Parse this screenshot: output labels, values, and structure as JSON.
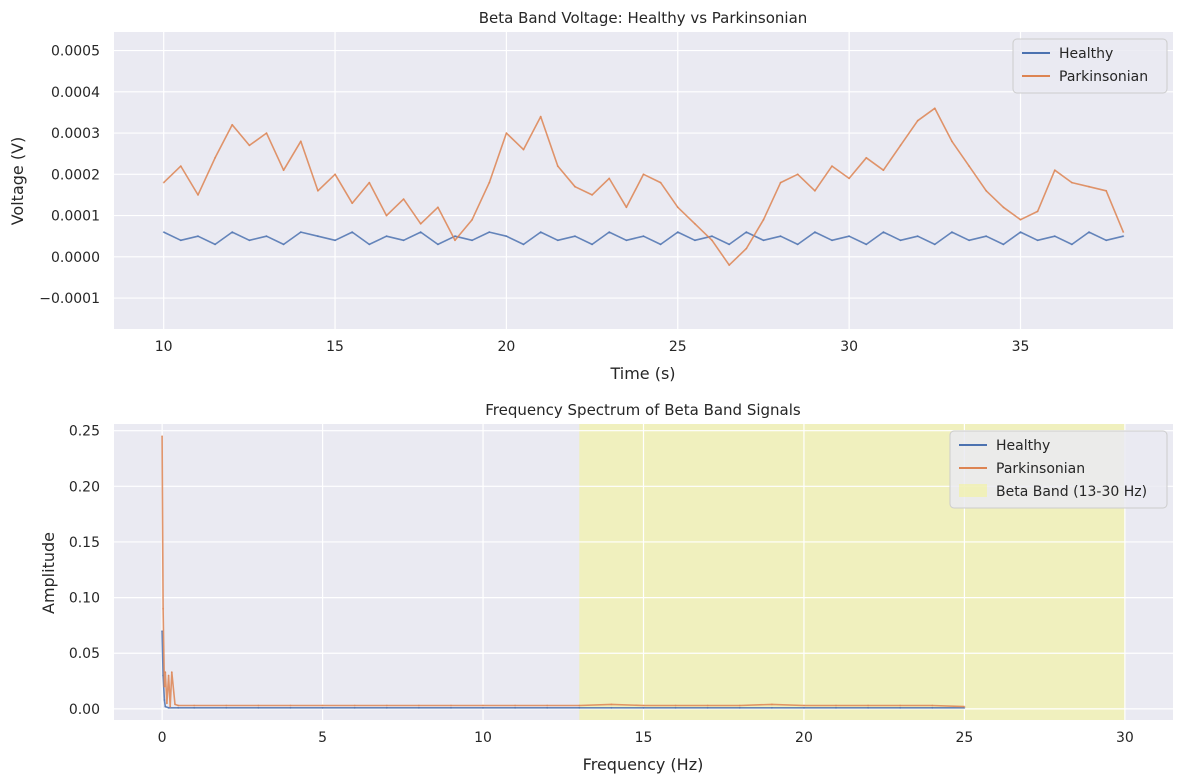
{
  "chart_data": [
    {
      "type": "line",
      "title": "Beta Band Voltage: Healthy vs Parkinsonian",
      "xlabel": "Time (s)",
      "ylabel": "Voltage (V)",
      "xlim": [
        8.55,
        39.45
      ],
      "ylim": [
        -0.000175,
        0.000545
      ],
      "xticks": [
        10,
        15,
        20,
        25,
        30,
        35
      ],
      "xtick_labels": [
        "10",
        "15",
        "20",
        "25",
        "30",
        "35"
      ],
      "yticks": [
        -0.0001,
        0.0,
        0.0001,
        0.0002,
        0.0003,
        0.0004,
        0.0005
      ],
      "ytick_labels": [
        "−0.0001",
        "0.0000",
        "0.0001",
        "0.0002",
        "0.0003",
        "0.0004",
        "0.0005"
      ],
      "grid": true,
      "legend_position": "top-right",
      "series": [
        {
          "name": "Healthy",
          "color": "#4c72b0",
          "x": [
            10,
            10.5,
            11,
            11.5,
            12,
            12.5,
            13,
            13.5,
            14,
            14.5,
            15,
            15.5,
            16,
            16.5,
            17,
            17.5,
            18,
            18.5,
            19,
            19.5,
            20,
            20.5,
            21,
            21.5,
            22,
            22.5,
            23,
            23.5,
            24,
            24.5,
            25,
            25.5,
            26,
            26.5,
            27,
            27.5,
            28,
            28.5,
            29,
            29.5,
            30,
            30.5,
            31,
            31.5,
            32,
            32.5,
            33,
            33.5,
            34,
            34.5,
            35,
            35.5,
            36,
            36.5,
            37,
            37.5,
            38
          ],
          "y": [
            6e-05,
            4e-05,
            5e-05,
            3e-05,
            6e-05,
            4e-05,
            5e-05,
            3e-05,
            6e-05,
            5e-05,
            4e-05,
            6e-05,
            3e-05,
            5e-05,
            4e-05,
            6e-05,
            3e-05,
            5e-05,
            4e-05,
            6e-05,
            5e-05,
            3e-05,
            6e-05,
            4e-05,
            5e-05,
            3e-05,
            6e-05,
            4e-05,
            5e-05,
            3e-05,
            6e-05,
            4e-05,
            5e-05,
            3e-05,
            6e-05,
            4e-05,
            5e-05,
            3e-05,
            6e-05,
            4e-05,
            5e-05,
            3e-05,
            6e-05,
            4e-05,
            5e-05,
            3e-05,
            6e-05,
            4e-05,
            5e-05,
            3e-05,
            6e-05,
            4e-05,
            5e-05,
            3e-05,
            6e-05,
            4e-05,
            5e-05
          ]
        },
        {
          "name": "Parkinsonian",
          "color": "#dd8452",
          "x": [
            10,
            10.5,
            11,
            11.5,
            12,
            12.5,
            13,
            13.5,
            14,
            14.5,
            15,
            15.5,
            16,
            16.5,
            17,
            17.5,
            18,
            18.5,
            19,
            19.5,
            20,
            20.5,
            21,
            21.5,
            22,
            22.5,
            23,
            23.5,
            24,
            24.5,
            25,
            25.5,
            26,
            26.5,
            27,
            27.5,
            28,
            28.5,
            29,
            29.5,
            30,
            30.5,
            31,
            31.5,
            32,
            32.5,
            33,
            33.5,
            34,
            34.5,
            35,
            35.5,
            36,
            36.5,
            37,
            37.5,
            38
          ],
          "y": [
            0.00018,
            0.00022,
            0.00015,
            0.00024,
            0.00032,
            0.00027,
            0.0003,
            0.00021,
            0.00028,
            0.00016,
            0.0002,
            0.00013,
            0.00018,
            0.0001,
            0.00014,
            8e-05,
            0.00012,
            4e-05,
            9e-05,
            0.00018,
            0.0003,
            0.00026,
            0.00034,
            0.00022,
            0.00017,
            0.00015,
            0.00019,
            0.00012,
            0.0002,
            0.00018,
            0.00012,
            8e-05,
            4e-05,
            -2e-05,
            2e-05,
            9e-05,
            0.00018,
            0.0002,
            0.00016,
            0.00022,
            0.00019,
            0.00024,
            0.00021,
            0.00027,
            0.00033,
            0.00036,
            0.00028,
            0.00022,
            0.00016,
            0.00012,
            9e-05,
            0.00011,
            0.00021,
            0.00018,
            0.00017,
            0.00016,
            6e-05
          ]
        }
      ]
    },
    {
      "type": "line",
      "title": "Frequency Spectrum of Beta Band Signals",
      "xlabel": "Frequency (Hz)",
      "ylabel": "Amplitude",
      "xlim": [
        -1.5,
        31.5
      ],
      "ylim": [
        -0.01,
        0.256
      ],
      "xticks": [
        0,
        5,
        10,
        15,
        20,
        25,
        30
      ],
      "xtick_labels": [
        "0",
        "5",
        "10",
        "15",
        "20",
        "25",
        "30"
      ],
      "yticks": [
        0.0,
        0.05,
        0.1,
        0.15,
        0.2,
        0.25
      ],
      "ytick_labels": [
        "0.00",
        "0.05",
        "0.10",
        "0.15",
        "0.20",
        "0.25"
      ],
      "grid": true,
      "legend_position": "top-right",
      "shaded_regions": [
        {
          "name": "Beta Band (13-30 Hz)",
          "x0": 13,
          "x1": 30,
          "color": "#f5f58a"
        }
      ],
      "series": [
        {
          "name": "Healthy",
          "color": "#4c72b0",
          "x": [
            0,
            0.03,
            0.07,
            0.1,
            0.2,
            0.5,
            1,
            2,
            3,
            4,
            5,
            6,
            7,
            8,
            9,
            10,
            11,
            12,
            13,
            14,
            15,
            16,
            17,
            18,
            19,
            20,
            21,
            22,
            23,
            24,
            25
          ],
          "y": [
            0.07,
            0.03,
            0.008,
            0.002,
            0.001,
            0.001,
            0.001,
            0.001,
            0.001,
            0.001,
            0.001,
            0.001,
            0.001,
            0.001,
            0.001,
            0.001,
            0.001,
            0.001,
            0.001,
            0.001,
            0.001,
            0.001,
            0.001,
            0.001,
            0.001,
            0.001,
            0.001,
            0.001,
            0.001,
            0.001,
            0.001
          ]
        },
        {
          "name": "Parkinsonian",
          "color": "#dd8452",
          "x": [
            0,
            0.03,
            0.07,
            0.1,
            0.15,
            0.2,
            0.25,
            0.3,
            0.4,
            0.5,
            1,
            2,
            3,
            4,
            5,
            6,
            7,
            8,
            9,
            10,
            11,
            12,
            13,
            14,
            15,
            16,
            17,
            18,
            19,
            20,
            21,
            22,
            23,
            24,
            25
          ],
          "y": [
            0.245,
            0.09,
            0.02,
            0.033,
            0.005,
            0.03,
            0.002,
            0.033,
            0.004,
            0.003,
            0.003,
            0.003,
            0.003,
            0.003,
            0.003,
            0.003,
            0.003,
            0.003,
            0.003,
            0.003,
            0.003,
            0.003,
            0.003,
            0.004,
            0.003,
            0.003,
            0.003,
            0.003,
            0.004,
            0.003,
            0.003,
            0.003,
            0.003,
            0.003,
            0.002
          ]
        }
      ]
    }
  ]
}
